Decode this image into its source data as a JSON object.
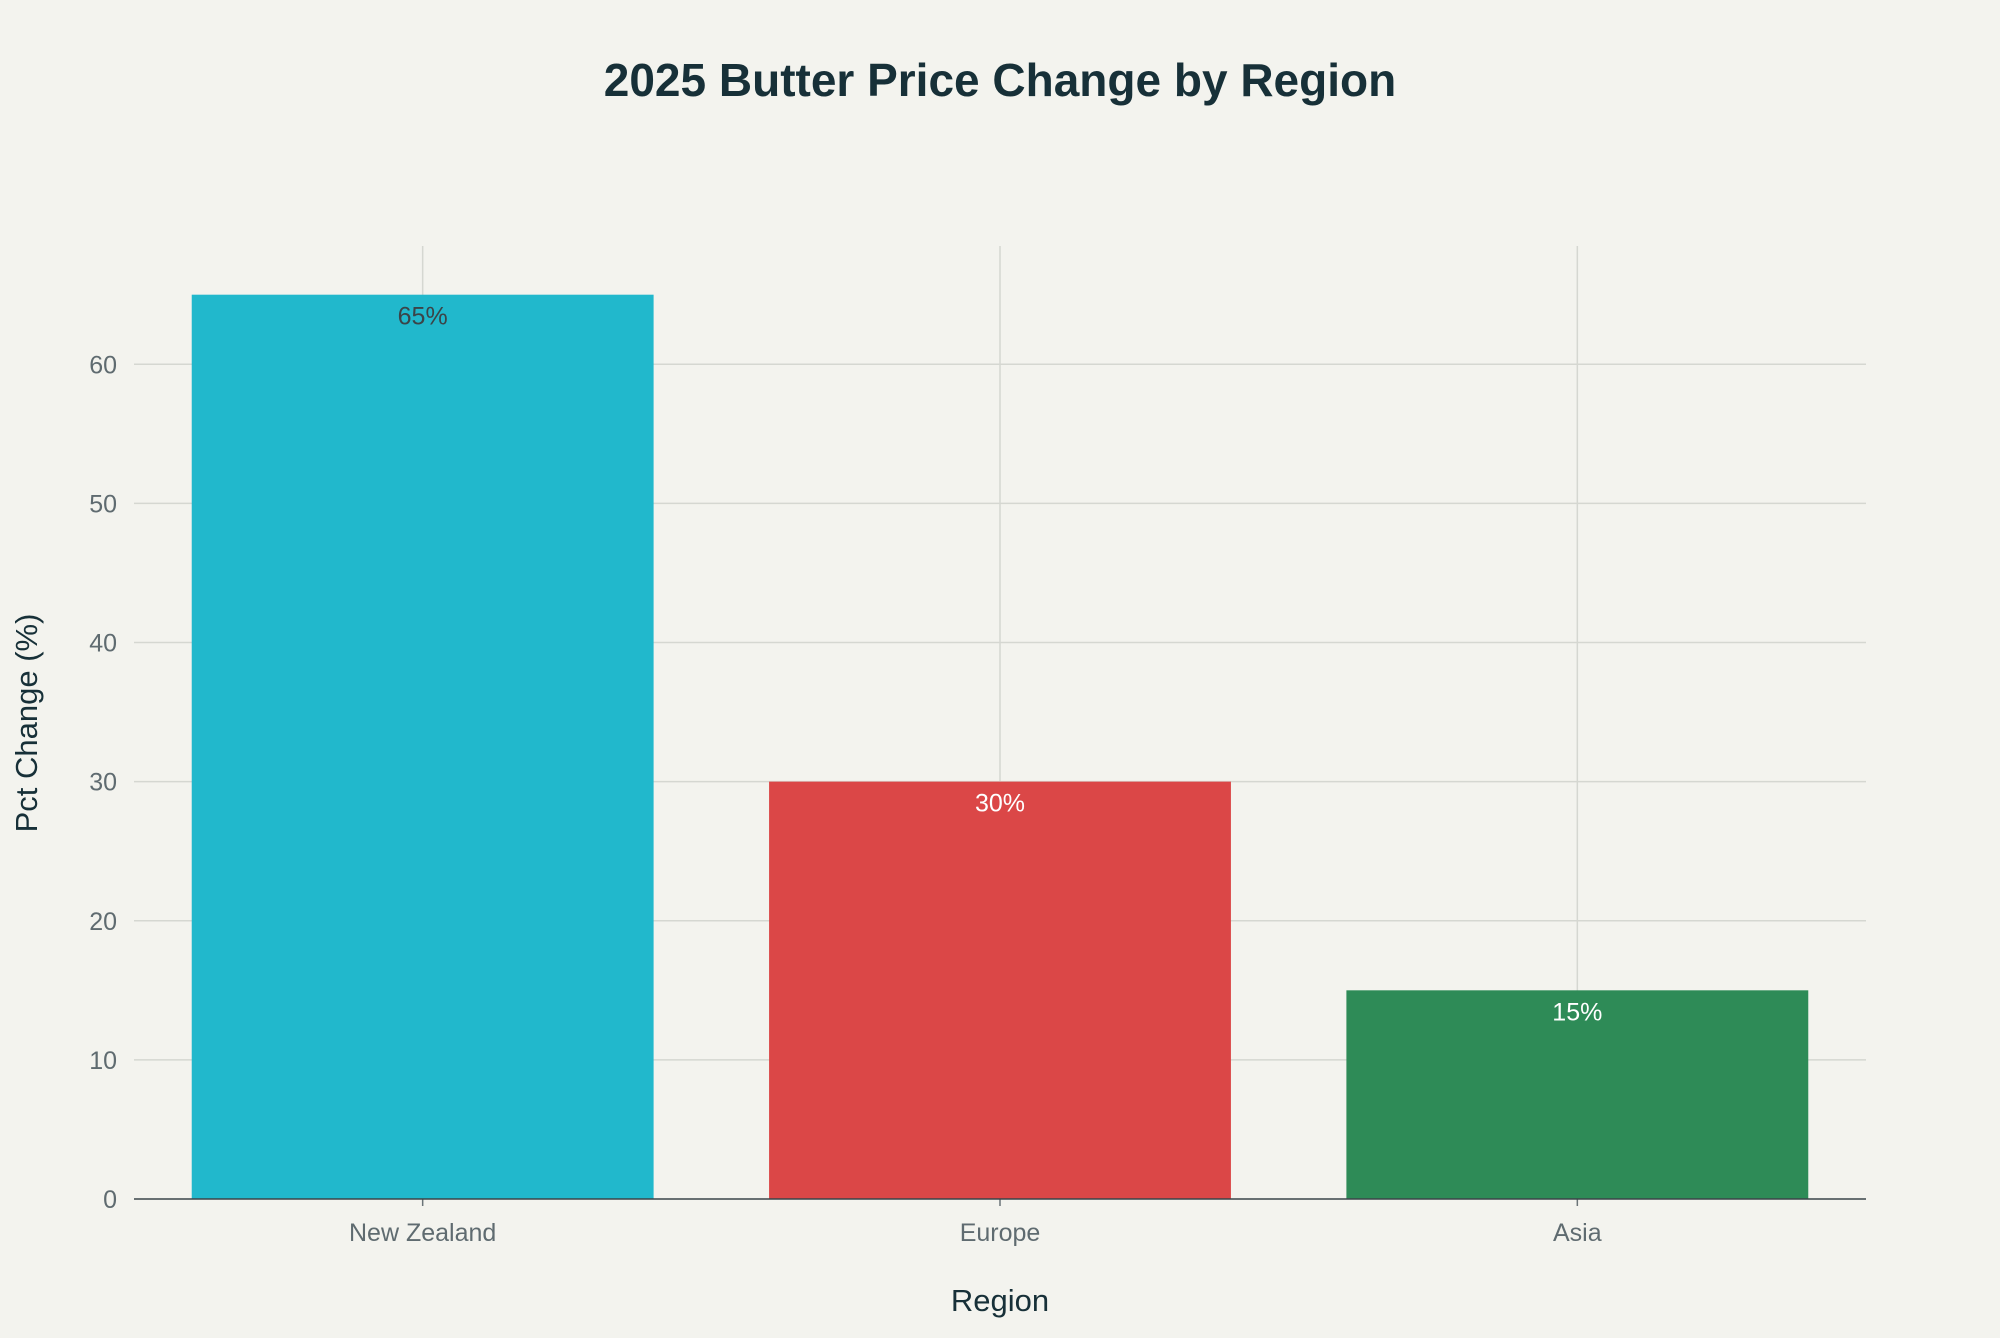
{
  "chart_data": {
    "type": "bar",
    "title": "2025 Butter Price Change by Region",
    "xlabel": "Region",
    "ylabel": "Pct Change (%)",
    "categories": [
      "New Zealand",
      "Europe",
      "Asia"
    ],
    "values": [
      65,
      30,
      15
    ],
    "data_labels": [
      "65%",
      "30%",
      "15%"
    ],
    "colors": [
      "#21b8cc",
      "#db4747",
      "#2e8b57"
    ],
    "label_colors": [
      "#3b4448",
      "#ffffff",
      "#ffffff"
    ],
    "ylim": [
      0,
      68.5
    ],
    "yticks": [
      0,
      10,
      20,
      30,
      40,
      50,
      60
    ],
    "ytick_labels": [
      "0",
      "10",
      "20",
      "30",
      "40",
      "50",
      "60"
    ],
    "grid": true,
    "legend": "none"
  }
}
